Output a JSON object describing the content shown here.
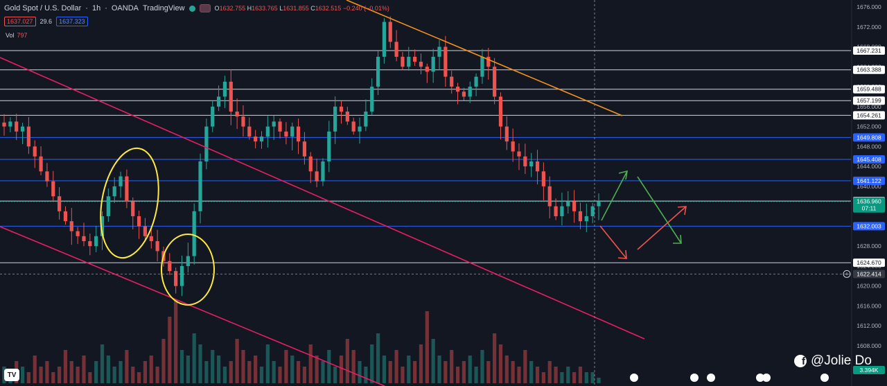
{
  "header": {
    "symbol": "Gold Spot / U.S. Dollar",
    "interval": "1h",
    "broker": "OANDA",
    "platform": "TradingView",
    "open_label": "O",
    "open": "1632.755",
    "high_label": "H",
    "high": "1633.765",
    "low_label": "L",
    "low": "1631.855",
    "close_label": "C",
    "close": "1632.515",
    "change": "−0.240 (−0.01%)",
    "sell_price": "1637.027",
    "spread": "29.6",
    "buy_price": "1637.323",
    "volume_label": "Vol",
    "volume_value": "797"
  },
  "watermark": {
    "text": "@Jolie Do",
    "icon": "facebook-icon"
  },
  "colors": {
    "background": "#131722",
    "up": "#26a69a",
    "down": "#ef5350",
    "grid_line": "#2a2e39",
    "orange_trend": "#f7931a",
    "pink_channel": "#e91e63",
    "yellow_marker": "#ffeb3b",
    "blue_level": "#2962ff",
    "white_level": "#d1d4dc"
  },
  "chart_data": {
    "type": "candlestick",
    "ylim": [
      1605,
      1677
    ],
    "y_ticks": [
      "1676.000",
      "1672.000",
      "1668.000",
      "1664.000",
      "1660.000",
      "1656.000",
      "1652.000",
      "1648.000",
      "1644.000",
      "1640.000",
      "1636.000",
      "1632.000",
      "1628.000",
      "1624.000",
      "1620.000",
      "1616.000",
      "1612.000",
      "1608.000"
    ],
    "tick_values": [
      1676,
      1672,
      1668,
      1664,
      1660,
      1656,
      1652,
      1648,
      1644,
      1640,
      1636,
      1632,
      1628,
      1624,
      1620,
      1616,
      1612,
      1608
    ],
    "price_levels": [
      {
        "label": "1667.231",
        "value": 1667.231,
        "color": "white"
      },
      {
        "label": "1663.388",
        "value": 1663.388,
        "color": "white"
      },
      {
        "label": "1659.488",
        "value": 1659.488,
        "color": "white"
      },
      {
        "label": "1657.199",
        "value": 1657.199,
        "color": "white"
      },
      {
        "label": "1654.261",
        "value": 1654.261,
        "color": "white"
      },
      {
        "label": "1649.808",
        "value": 1649.808,
        "color": "blue"
      },
      {
        "label": "1645.408",
        "value": 1645.408,
        "color": "blue"
      },
      {
        "label": "1641.122",
        "value": 1641.122,
        "color": "blue"
      },
      {
        "label": "1637.038",
        "value": 1637.038,
        "color": "white"
      },
      {
        "label": "1632.003",
        "value": 1632.003,
        "color": "blue"
      },
      {
        "label": "1624.670",
        "value": 1624.67,
        "color": "white"
      }
    ],
    "current_price": {
      "label": "1636.960",
      "value": 1636.96,
      "countdown": "07:11"
    },
    "crosshair_price": {
      "label": "1622.414",
      "value": 1622.414
    },
    "volume_label": "3.394K",
    "close_path": [
      1652,
      1653,
      1651,
      1652,
      1648,
      1646,
      1643,
      1641,
      1638,
      1635,
      1633,
      1631,
      1630,
      1629,
      1628,
      1630,
      1634,
      1638,
      1640,
      1642,
      1637,
      1634,
      1632,
      1630,
      1629,
      1627,
      1625,
      1623,
      1620,
      1624,
      1626,
      1635,
      1645,
      1652,
      1656,
      1658,
      1661,
      1655,
      1654,
      1652,
      1650,
      1649,
      1650,
      1652,
      1653,
      1651,
      1650,
      1652,
      1649,
      1646,
      1643,
      1641,
      1645,
      1651,
      1656,
      1655,
      1653,
      1651,
      1652,
      1655,
      1660,
      1666,
      1673,
      1669,
      1666,
      1664,
      1666,
      1665,
      1664,
      1663,
      1666,
      1668,
      1662,
      1660,
      1659,
      1658,
      1660,
      1662,
      1666,
      1664,
      1658,
      1652,
      1649,
      1647,
      1646,
      1644,
      1645,
      1643,
      1640,
      1636,
      1634,
      1636,
      1637,
      1635,
      1633,
      1634,
      1636,
      1636.96
    ],
    "volumes": [
      3,
      2,
      4,
      3,
      2,
      5,
      3,
      4,
      2,
      3,
      6,
      4,
      3,
      5,
      2,
      4,
      7,
      5,
      3,
      4,
      6,
      3,
      2,
      4,
      5,
      3,
      8,
      12,
      15,
      6,
      5,
      9,
      7,
      4,
      6,
      5,
      3,
      4,
      8,
      6,
      4,
      5,
      3,
      7,
      4,
      3,
      6,
      5,
      4,
      3,
      7,
      5,
      4,
      6,
      3,
      5,
      8,
      6,
      4,
      3,
      7,
      9,
      5,
      4,
      6,
      3,
      5,
      4,
      7,
      13,
      8,
      5,
      4,
      6,
      3,
      4,
      5,
      3,
      6,
      4,
      9,
      7,
      5,
      4,
      3,
      6,
      4,
      3,
      2,
      4,
      3,
      2,
      3,
      2,
      3,
      2,
      2,
      1
    ]
  }
}
